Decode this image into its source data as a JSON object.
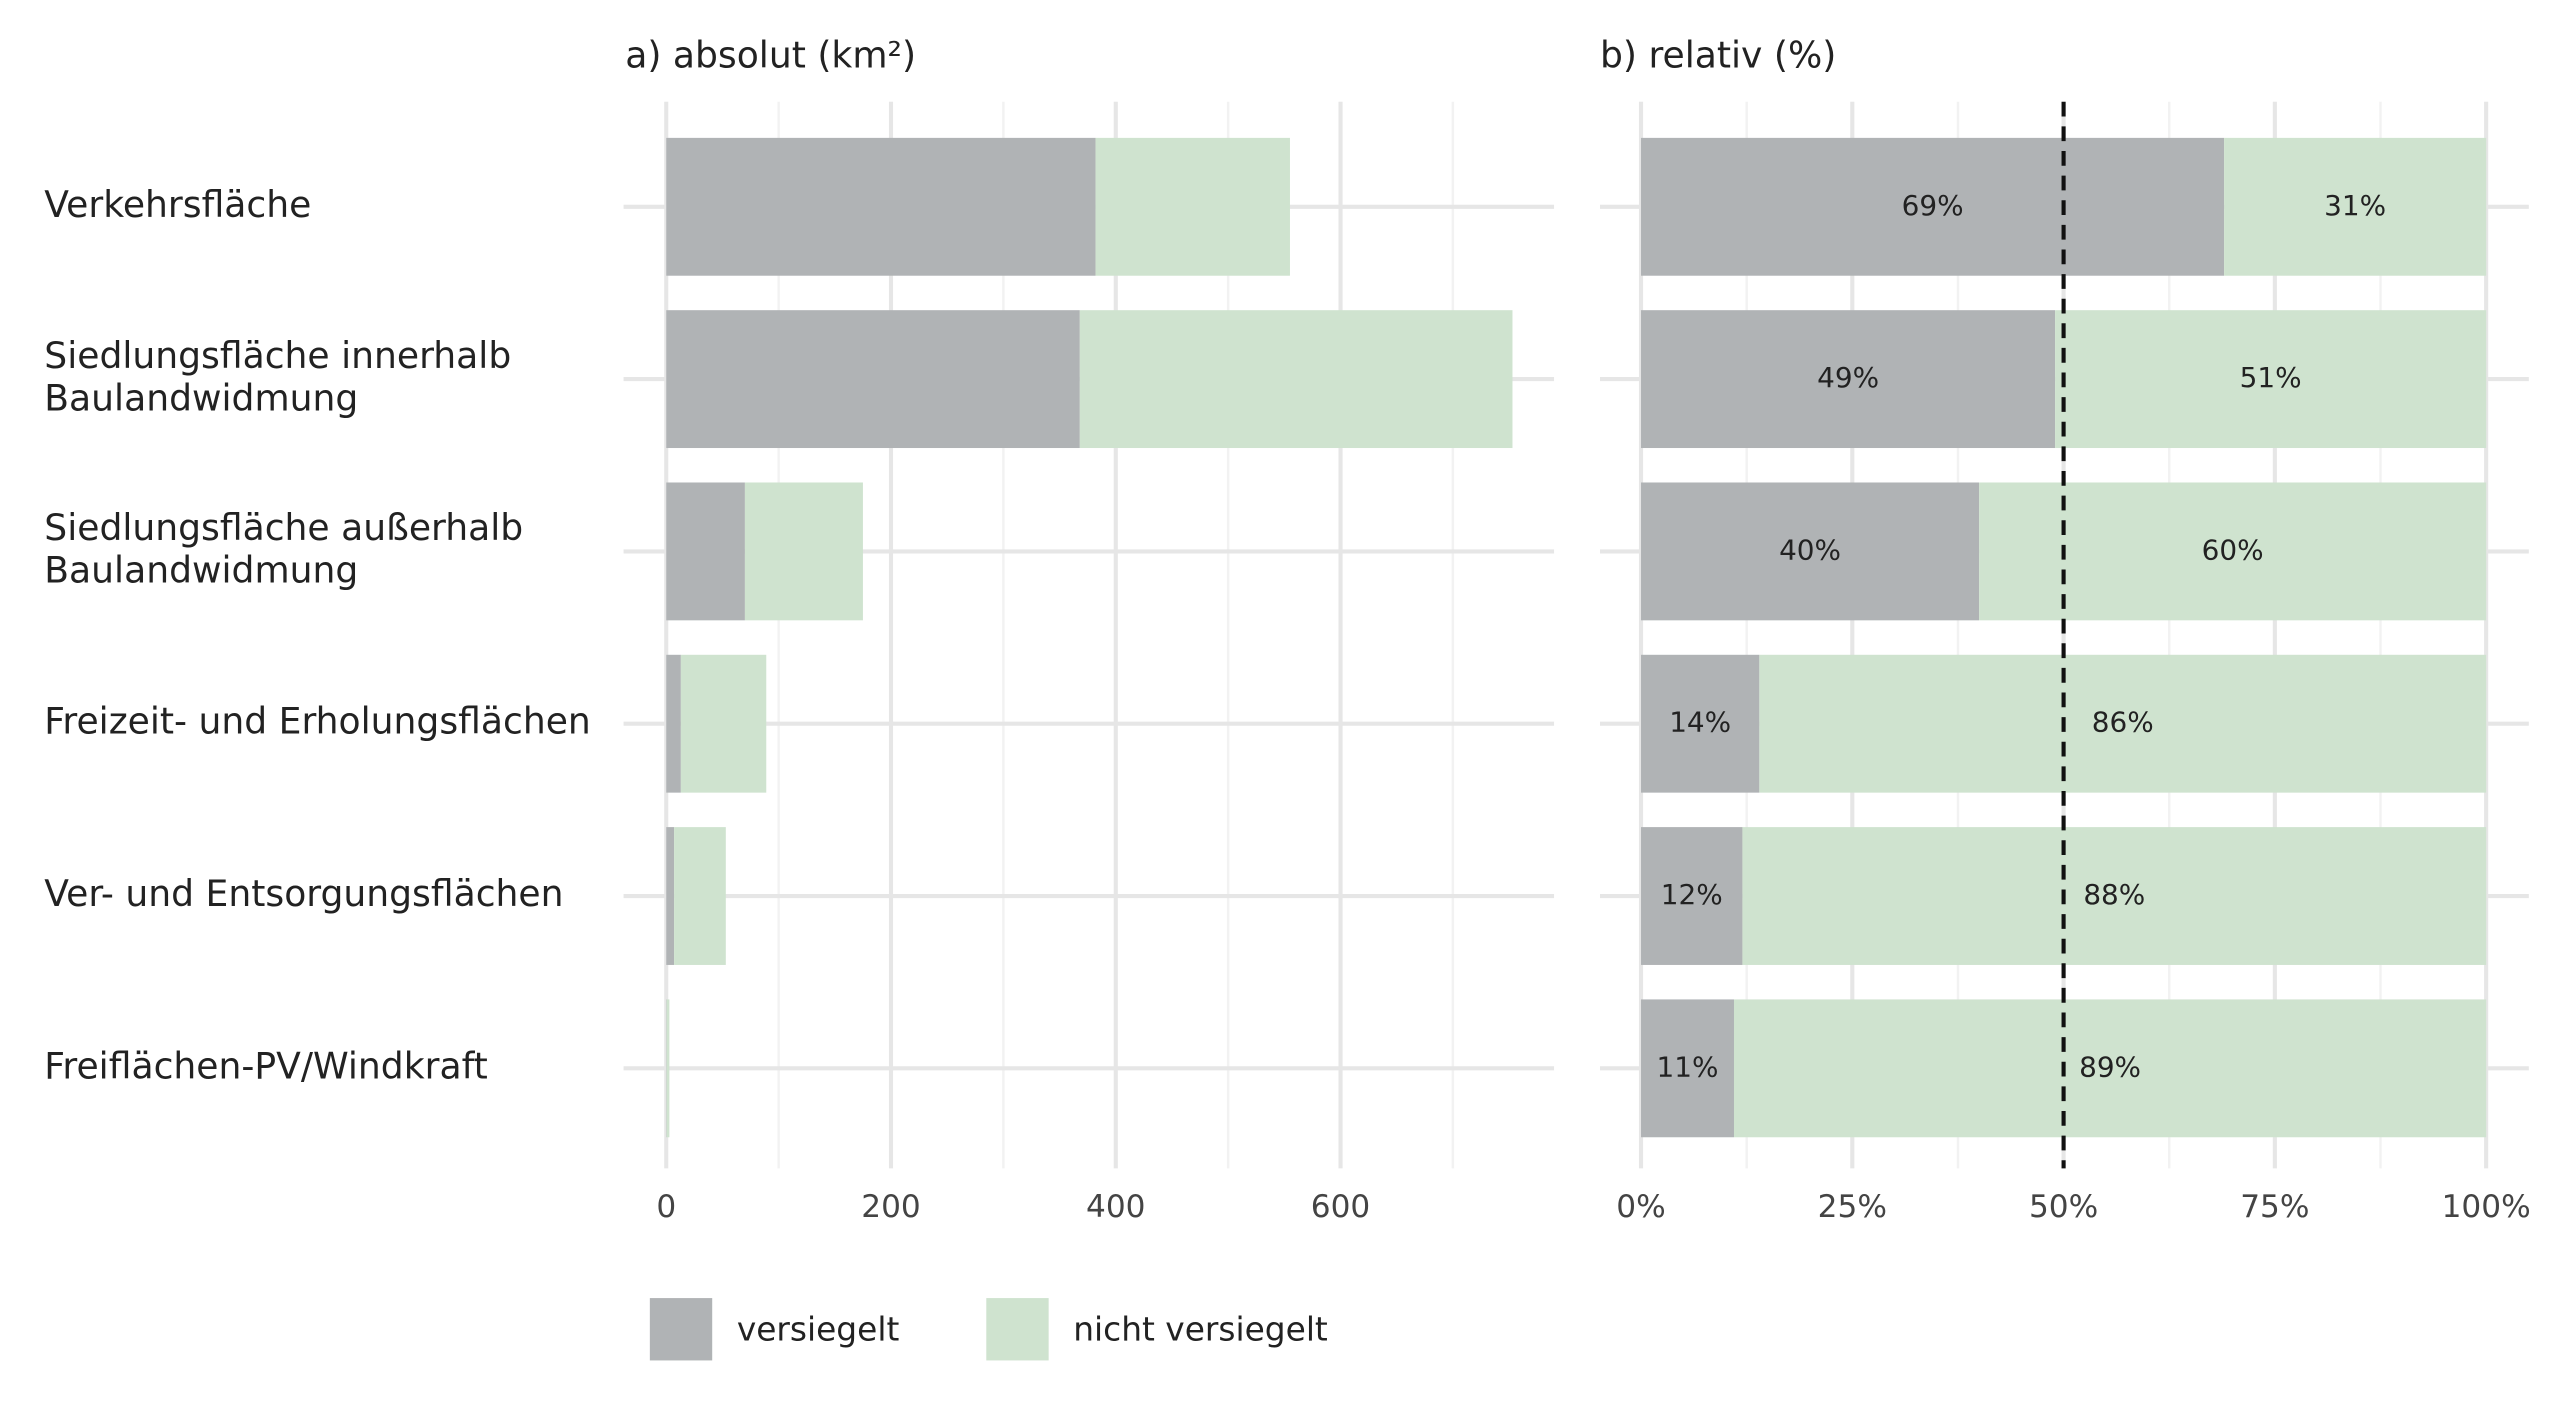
{
  "chart_data": [
    {
      "type": "bar",
      "orientation": "horizontal",
      "stacked": true,
      "title": "a) absolut (km²)",
      "categories": [
        "Verkehrsfläche",
        "Siedlungsfläche innerhalb\nBaulandwidmung",
        "Siedlungsfläche außerhalb\nBaulandwidmung",
        "Freizeit- und Erholungsflächen",
        "Ver- und Entsorgungsflächen",
        "Freiflächen-PV/Windkraft"
      ],
      "series": [
        {
          "name": "versiegelt",
          "color": "#b0b3b5",
          "values": [
            382,
            368,
            70,
            13,
            7,
            0.3
          ]
        },
        {
          "name": "nicht versiegelt",
          "color": "#cfe3cf",
          "values": [
            173,
            385,
            105,
            76,
            46,
            2.5
          ]
        }
      ],
      "xlim": [
        0,
        790
      ],
      "xticks": [
        0,
        200,
        400,
        600
      ],
      "xticks_minor": [
        100,
        300,
        500,
        700
      ],
      "grid": true,
      "legend": "bottom"
    },
    {
      "type": "bar",
      "orientation": "horizontal",
      "stacked": true,
      "title": "b) relativ (%)",
      "series": [
        {
          "color": "#b0b3b5",
          "values": [
            69,
            49,
            40,
            14,
            12,
            11
          ],
          "value_labels": [
            "69%",
            "49%",
            "40%",
            "14%",
            "12%",
            "11%"
          ]
        },
        {
          "color": "#cfe3cf",
          "values": [
            31,
            51,
            60,
            86,
            88,
            89
          ],
          "value_labels": [
            "31%",
            "51%",
            "60%",
            "86%",
            "88%",
            "89%"
          ]
        }
      ],
      "xlim": [
        0,
        100
      ],
      "xticks": [
        {
          "value": 0,
          "label": "0%"
        },
        {
          "value": 25,
          "label": "25%"
        },
        {
          "value": 50,
          "label": "50%"
        },
        {
          "value": 75,
          "label": "75%"
        },
        {
          "value": 100,
          "label": "100%"
        }
      ],
      "xticks_minor": [
        12.5,
        37.5,
        62.5,
        87.5
      ],
      "grid": true,
      "vline": 50
    }
  ]
}
